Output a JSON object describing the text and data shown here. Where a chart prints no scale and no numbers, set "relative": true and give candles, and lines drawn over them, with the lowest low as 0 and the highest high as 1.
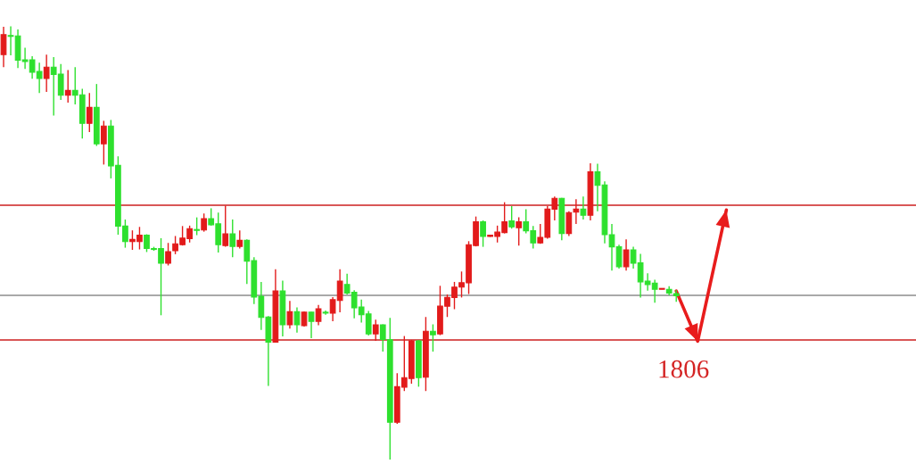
{
  "chart_data": {
    "type": "candlestick",
    "relative": true,
    "categories": [
      null,
      null,
      null,
      null,
      null,
      null,
      null,
      null,
      null,
      null,
      null,
      null,
      null,
      null,
      null,
      null,
      null,
      null,
      null,
      null,
      null,
      null,
      null,
      null,
      null,
      null,
      null,
      null,
      null,
      null,
      null,
      null,
      null,
      null,
      null,
      null,
      null,
      null,
      null,
      null,
      null,
      null,
      null,
      null,
      null,
      null,
      null,
      null,
      null,
      null,
      null,
      null,
      null,
      null,
      null,
      null,
      null,
      null,
      null,
      null,
      null,
      null,
      null,
      null,
      null,
      null,
      null,
      null,
      null,
      null,
      null,
      null,
      null,
      null,
      null,
      null,
      null,
      null,
      null,
      null,
      null,
      null,
      null,
      null,
      null,
      null,
      null,
      null,
      null,
      null,
      null,
      null,
      null,
      null,
      null,
      null,
      null,
      null,
      null,
      null,
      null,
      null,
      null,
      null,
      null,
      null,
      null,
      null,
      null,
      null,
      null,
      null,
      null,
      null,
      null,
      null,
      null,
      null,
      null,
      null,
      null,
      null,
      null,
      null,
      null,
      null,
      null,
      null
    ],
    "ohlc": [
      [
        0.935,
        0.999,
        0.906,
        0.981
      ],
      [
        0.979,
        1.0,
        0.933,
        0.977
      ],
      [
        0.978,
        0.993,
        0.904,
        0.922
      ],
      [
        0.923,
        0.951,
        0.902,
        0.919
      ],
      [
        0.923,
        0.931,
        0.879,
        0.894
      ],
      [
        0.896,
        0.916,
        0.846,
        0.88
      ],
      [
        0.88,
        0.935,
        0.849,
        0.906
      ],
      [
        0.906,
        0.929,
        0.794,
        0.889
      ],
      [
        0.89,
        0.913,
        0.83,
        0.841
      ],
      [
        0.841,
        0.899,
        0.824,
        0.852
      ],
      [
        0.852,
        0.906,
        0.82,
        0.841
      ],
      [
        0.842,
        0.856,
        0.741,
        0.776
      ],
      [
        0.776,
        0.846,
        0.756,
        0.813
      ],
      [
        0.813,
        0.867,
        0.724,
        0.729
      ],
      [
        0.729,
        0.782,
        0.681,
        0.77
      ],
      [
        0.77,
        0.784,
        0.649,
        0.678
      ],
      [
        0.679,
        0.7,
        0.519,
        0.539
      ],
      [
        0.539,
        0.554,
        0.489,
        0.503
      ],
      [
        0.503,
        0.529,
        0.484,
        0.508
      ],
      [
        0.503,
        0.537,
        0.485,
        0.518
      ],
      [
        0.518,
        0.52,
        0.479,
        0.487
      ],
      [
        0.487,
        0.491,
        0.482,
        0.485
      ],
      [
        0.487,
        0.511,
        0.333,
        0.453
      ],
      [
        0.453,
        0.5,
        0.448,
        0.48
      ],
      [
        0.482,
        0.516,
        0.474,
        0.498
      ],
      [
        0.496,
        0.539,
        0.494,
        0.511
      ],
      [
        0.51,
        0.54,
        0.501,
        0.533
      ],
      [
        0.531,
        0.559,
        0.518,
        0.529
      ],
      [
        0.53,
        0.568,
        0.526,
        0.556
      ],
      [
        0.556,
        0.58,
        0.54,
        0.542
      ],
      [
        0.544,
        0.57,
        0.478,
        0.496
      ],
      [
        0.494,
        0.586,
        0.491,
        0.521
      ],
      [
        0.521,
        0.554,
        0.467,
        0.492
      ],
      [
        0.492,
        0.529,
        0.487,
        0.506
      ],
      [
        0.506,
        0.508,
        0.405,
        0.458
      ],
      [
        0.459,
        0.467,
        0.359,
        0.375
      ],
      [
        0.377,
        0.41,
        0.299,
        0.328
      ],
      [
        0.329,
        0.331,
        0.17,
        0.271
      ],
      [
        0.271,
        0.439,
        0.271,
        0.389
      ],
      [
        0.389,
        0.413,
        0.284,
        0.311
      ],
      [
        0.311,
        0.366,
        0.302,
        0.341
      ],
      [
        0.341,
        0.351,
        0.293,
        0.311
      ],
      [
        0.309,
        0.342,
        0.307,
        0.34
      ],
      [
        0.34,
        0.341,
        0.28,
        0.319
      ],
      [
        0.319,
        0.357,
        0.31,
        0.348
      ],
      [
        0.34,
        0.344,
        0.334,
        0.338
      ],
      [
        0.338,
        0.375,
        0.319,
        0.369
      ],
      [
        0.367,
        0.439,
        0.34,
        0.412
      ],
      [
        0.404,
        0.429,
        0.381,
        0.384
      ],
      [
        0.386,
        0.391,
        0.326,
        0.35
      ],
      [
        0.352,
        0.369,
        0.316,
        0.334
      ],
      [
        0.336,
        0.343,
        0.286,
        0.29
      ],
      [
        0.29,
        0.323,
        0.274,
        0.311
      ],
      [
        0.311,
        0.312,
        0.249,
        0.277
      ],
      [
        0.277,
        0.327,
        0.0,
        0.086
      ],
      [
        0.086,
        0.199,
        0.082,
        0.168
      ],
      [
        0.167,
        0.285,
        0.158,
        0.189
      ],
      [
        0.187,
        0.276,
        0.175,
        0.274
      ],
      [
        0.274,
        0.276,
        0.168,
        0.189
      ],
      [
        0.19,
        0.329,
        0.158,
        0.296
      ],
      [
        0.296,
        0.312,
        0.249,
        0.288
      ],
      [
        0.29,
        0.401,
        0.287,
        0.354
      ],
      [
        0.354,
        0.381,
        0.329,
        0.374
      ],
      [
        0.374,
        0.41,
        0.347,
        0.398
      ],
      [
        0.398,
        0.434,
        0.374,
        0.408
      ],
      [
        0.408,
        0.504,
        0.382,
        0.496
      ],
      [
        0.494,
        0.561,
        0.492,
        0.549
      ],
      [
        0.549,
        0.552,
        0.491,
        0.515
      ],
      [
        0.515,
        0.519,
        0.514,
        0.518
      ],
      [
        0.515,
        0.54,
        0.501,
        0.525
      ],
      [
        0.524,
        0.594,
        0.522,
        0.549
      ],
      [
        0.551,
        0.585,
        0.533,
        0.537
      ],
      [
        0.535,
        0.559,
        0.494,
        0.549
      ],
      [
        0.549,
        0.578,
        0.522,
        0.528
      ],
      [
        0.528,
        0.539,
        0.487,
        0.5
      ],
      [
        0.5,
        0.544,
        0.498,
        0.513
      ],
      [
        0.513,
        0.585,
        0.51,
        0.578
      ],
      [
        0.578,
        0.607,
        0.552,
        0.603
      ],
      [
        0.603,
        0.604,
        0.506,
        0.522
      ],
      [
        0.522,
        0.573,
        0.516,
        0.57
      ],
      [
        0.571,
        0.601,
        0.544,
        0.578
      ],
      [
        0.578,
        0.607,
        0.554,
        0.564
      ],
      [
        0.564,
        0.684,
        0.552,
        0.664
      ],
      [
        0.664,
        0.683,
        0.573,
        0.633
      ],
      [
        0.634,
        0.642,
        0.499,
        0.519
      ],
      [
        0.519,
        0.544,
        0.436,
        0.491
      ],
      [
        0.491,
        0.496,
        0.441,
        0.445
      ],
      [
        0.445,
        0.508,
        0.436,
        0.484
      ],
      [
        0.484,
        0.491,
        0.441,
        0.453
      ],
      [
        0.454,
        0.475,
        0.374,
        0.41
      ],
      [
        0.412,
        0.43,
        0.39,
        0.404
      ],
      [
        0.407,
        0.415,
        0.362,
        0.393
      ],
      [
        0.393,
        0.395,
        0.393,
        0.395
      ],
      [
        0.393,
        0.4,
        0.379,
        0.384
      ],
      [
        0.383,
        0.391,
        0.364,
        0.378
      ],
      null,
      null,
      null,
      null,
      null,
      null,
      null,
      null,
      null,
      null,
      null,
      null,
      null,
      null,
      null,
      null,
      null,
      null,
      null,
      null,
      null,
      null,
      null,
      null,
      null,
      null,
      null,
      null,
      null,
      null,
      null,
      null,
      null
    ],
    "colors": [
      "#e21b1b",
      "#2ee02e",
      "#2ee02e",
      "#2ee02e",
      "#2ee02e",
      "#2ee02e",
      "#e21b1b",
      "#2ee02e",
      "#2ee02e",
      "#e21b1b",
      "#2ee02e",
      "#2ee02e",
      "#e21b1b",
      "#2ee02e",
      "#e21b1b",
      "#2ee02e",
      "#2ee02e",
      "#2ee02e",
      "#e21b1b",
      "#e21b1b",
      "#2ee02e",
      "#2ee02e",
      "#2ee02e",
      "#e21b1b",
      "#e21b1b",
      "#e21b1b",
      "#e21b1b",
      "#2ee02e",
      "#e21b1b",
      "#2ee02e",
      "#2ee02e",
      "#e21b1b",
      "#2ee02e",
      "#e21b1b",
      "#2ee02e",
      "#2ee02e",
      "#2ee02e",
      "#2ee02e",
      "#e21b1b",
      "#2ee02e",
      "#e21b1b",
      "#2ee02e",
      "#e21b1b",
      "#2ee02e",
      "#e21b1b",
      "#2ee02e",
      "#e21b1b",
      "#e21b1b",
      "#2ee02e",
      "#2ee02e",
      "#2ee02e",
      "#2ee02e",
      "#e21b1b",
      "#2ee02e",
      "#2ee02e",
      "#e21b1b",
      "#e21b1b",
      "#e21b1b",
      "#2ee02e",
      "#e21b1b",
      "#2ee02e",
      "#e21b1b",
      "#e21b1b",
      "#e21b1b",
      "#e21b1b",
      "#e21b1b",
      "#e21b1b",
      "#2ee02e",
      "#e21b1b",
      "#e21b1b",
      "#e21b1b",
      "#2ee02e",
      "#e21b1b",
      "#2ee02e",
      "#2ee02e",
      "#e21b1b",
      "#e21b1b",
      "#e21b1b",
      "#2ee02e",
      "#e21b1b",
      "#e21b1b",
      "#2ee02e",
      "#e21b1b",
      "#2ee02e",
      "#2ee02e",
      "#2ee02e",
      "#2ee02e",
      "#e21b1b",
      "#2ee02e",
      "#2ee02e",
      "#2ee02e",
      "#2ee02e",
      "#e21b1b",
      "#2ee02e",
      "#2ee02e",
      null,
      null,
      null,
      null,
      null,
      null,
      null,
      null,
      null,
      null,
      null,
      null,
      null,
      null,
      null,
      null,
      null,
      null,
      null,
      null,
      null,
      null,
      null,
      null,
      null,
      null,
      null,
      null,
      null,
      null,
      null,
      null,
      null
    ],
    "ref_lines": [
      {
        "axis": "y",
        "value": 0.587,
        "color": "#cc1f1f"
      },
      {
        "axis": "y",
        "value": 0.379,
        "color": "#8c8c8c"
      },
      {
        "axis": "y",
        "value": 0.276,
        "color": "#cc1f1f"
      }
    ],
    "annotations": [
      "1806"
    ],
    "series": [
      {
        "type": "line",
        "color": "#e81c1c",
        "values": [
          null,
          null,
          null,
          null,
          null,
          null,
          null,
          null,
          null,
          null,
          null,
          null,
          null,
          null,
          null,
          null,
          null,
          null,
          null,
          null,
          null,
          null,
          null,
          null,
          null,
          null,
          null,
          null,
          null,
          null,
          null,
          null,
          null,
          null,
          null,
          null,
          null,
          null,
          null,
          null,
          null,
          null,
          null,
          null,
          null,
          null,
          null,
          null,
          null,
          null,
          null,
          null,
          null,
          null,
          null,
          null,
          null,
          null,
          null,
          null,
          null,
          null,
          null,
          null,
          null,
          null,
          null,
          null,
          null,
          null,
          null,
          null,
          null,
          null,
          null,
          null,
          null,
          null,
          null,
          null,
          null,
          null,
          null,
          null,
          null,
          null,
          null,
          null,
          null,
          null,
          null,
          null,
          null,
          null,
          0.389,
          null,
          null,
          0.273,
          null,
          null,
          null,
          0.576,
          null,
          null,
          null,
          null,
          null,
          null,
          null,
          null,
          null,
          null,
          null,
          null,
          null,
          null,
          null,
          null,
          null,
          null,
          null,
          null,
          null,
          null,
          null,
          null,
          null,
          null
        ]
      }
    ]
  }
}
